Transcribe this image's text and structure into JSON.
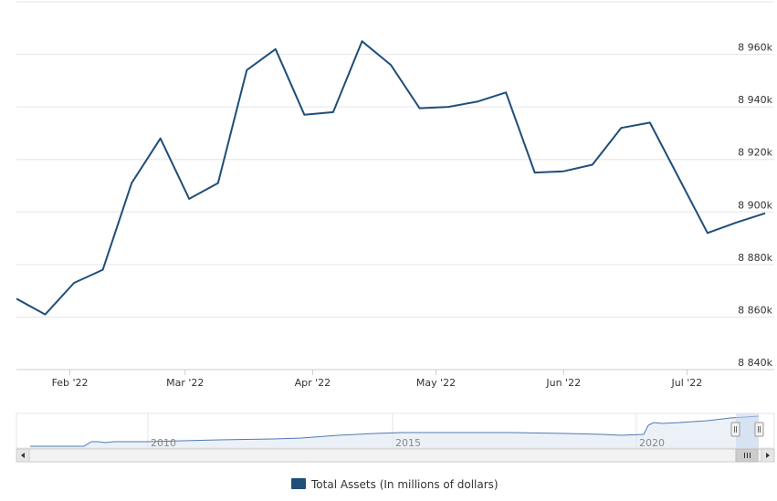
{
  "colors": {
    "series": "#1f4e79",
    "grid": "#e6e6e6",
    "navigator_fill": "#dfe8f3",
    "navigator_line": "#4e7bb3",
    "navigator_mask": "#c6d6ee",
    "scrollbar_bg": "#f2f2f2",
    "scrollbar_border": "#cccccc"
  },
  "legend": {
    "label": "Total Assets (In millions of dollars)"
  },
  "navigator": {
    "year_labels": [
      "2010",
      "2015",
      "2020"
    ],
    "scroll_left_icon": "triangle-left-icon",
    "scroll_right_icon": "triangle-right-icon",
    "grip_icon": "grip-lines-icon"
  },
  "chart_data": {
    "type": "line",
    "title": "",
    "xlabel": "",
    "ylabel": "",
    "x_tick_labels": [
      "Feb '22",
      "Mar '22",
      "Apr '22",
      "May '22",
      "Jun '22",
      "Jul '22"
    ],
    "y_tick_labels": [
      "8 840k",
      "8 860k",
      "8 880k",
      "8 900k",
      "8 920k",
      "8 940k",
      "8 960k"
    ],
    "ylim": [
      8840000,
      8980000
    ],
    "grid": true,
    "legend_position": "bottom-center",
    "series": [
      {
        "name": "Total Assets (In millions of dollars)",
        "x": [
          "2022-01-19",
          "2022-01-26",
          "2022-02-02",
          "2022-02-09",
          "2022-02-16",
          "2022-02-23",
          "2022-03-02",
          "2022-03-09",
          "2022-03-16",
          "2022-03-23",
          "2022-03-30",
          "2022-04-06",
          "2022-04-13",
          "2022-04-20",
          "2022-04-27",
          "2022-05-04",
          "2022-05-11",
          "2022-05-18",
          "2022-05-25",
          "2022-06-01",
          "2022-06-08",
          "2022-06-15",
          "2022-06-22",
          "2022-06-29",
          "2022-07-06",
          "2022-07-13",
          "2022-07-20"
        ],
        "values": [
          8867000,
          8861000,
          8873000,
          8878000,
          8911000,
          8928000,
          8905000,
          8911000,
          8954000,
          8962000,
          8937000,
          8938000,
          8965000,
          8956000,
          8939500,
          8940000,
          8942000,
          8945500,
          8915000,
          8915500,
          8918000,
          8932000,
          8934000,
          8913000,
          8892000,
          8896000,
          8899500
        ]
      }
    ]
  }
}
